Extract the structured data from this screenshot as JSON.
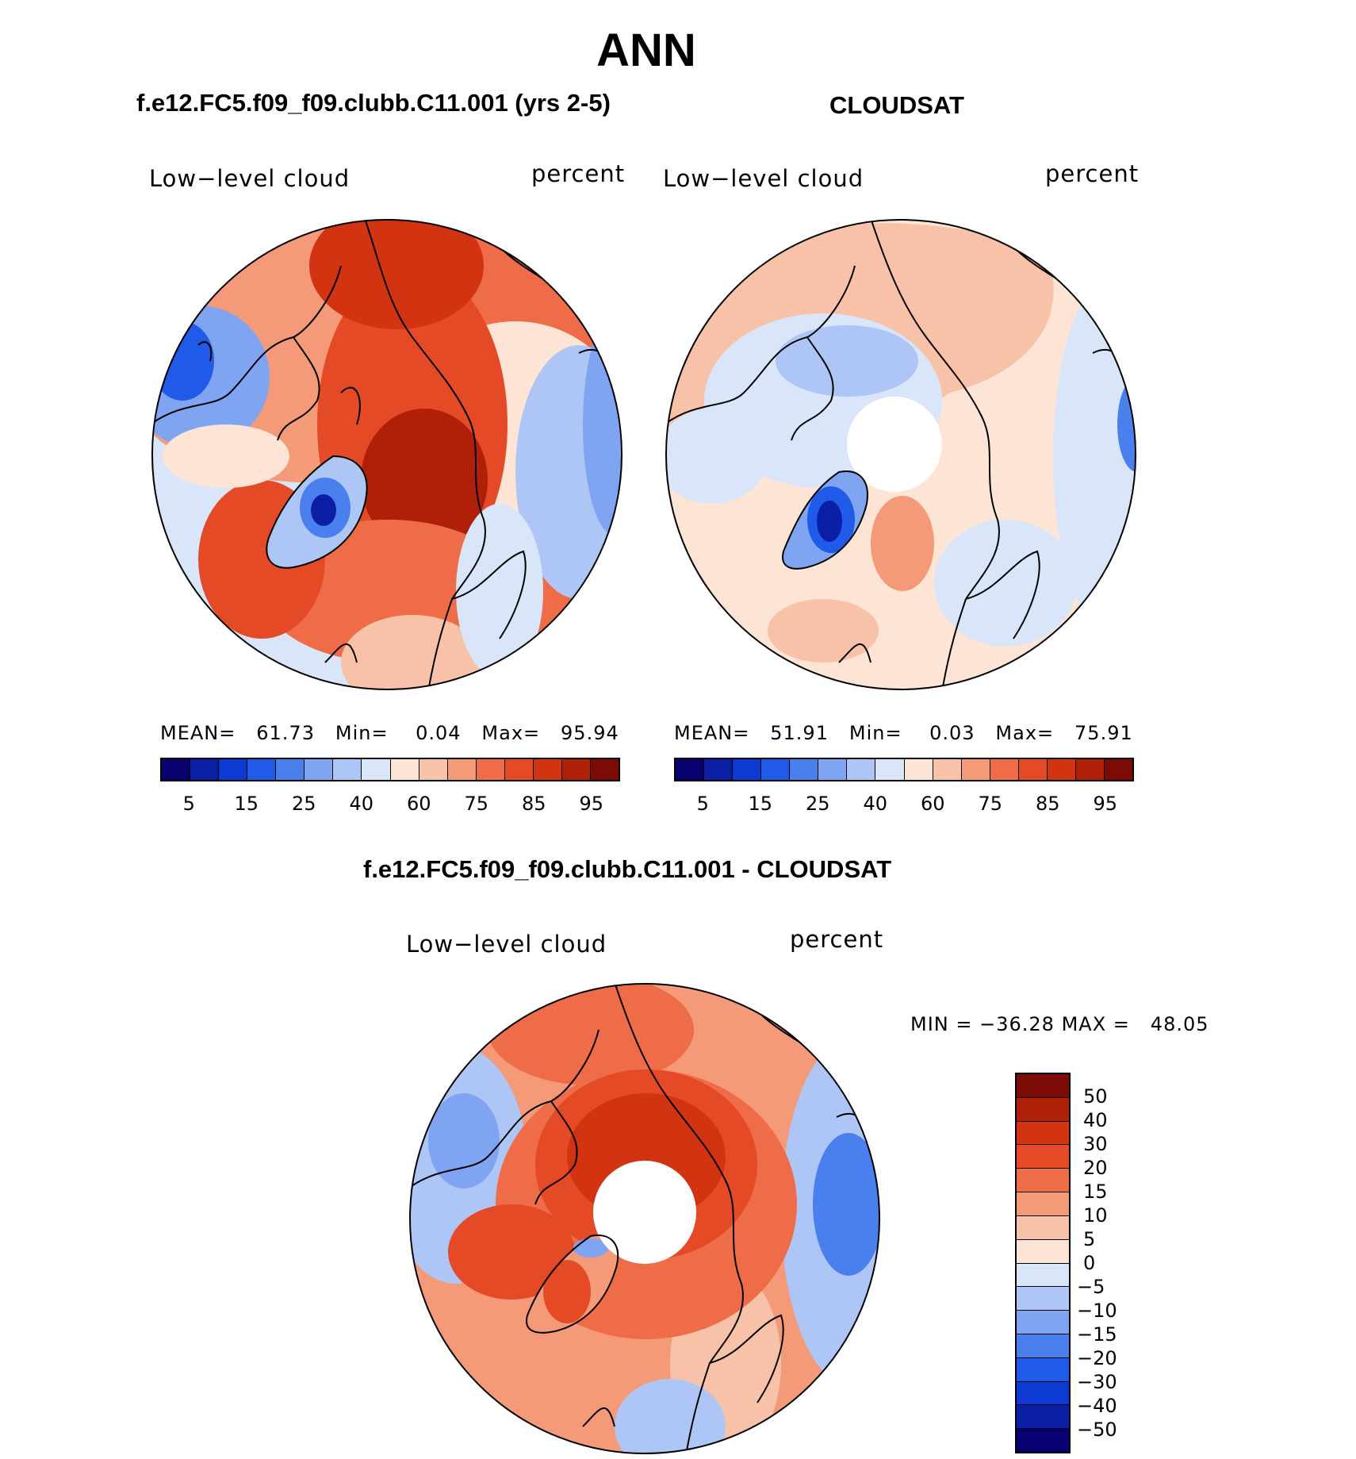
{
  "main_title": "ANN",
  "palette_abs": [
    "#08006e",
    "#0a1fa6",
    "#0d3ad2",
    "#1f5be8",
    "#4a80ee",
    "#7fa5f2",
    "#adc6f6",
    "#d9e6fa",
    "#fde4d4",
    "#f8c2a8",
    "#f49a78",
    "#ef6c48",
    "#e44a26",
    "#d23310",
    "#b01f08",
    "#7c0a05"
  ],
  "palette_diff": [
    "#7c0a05",
    "#b01f08",
    "#d23310",
    "#e44a26",
    "#ef6c48",
    "#f49a78",
    "#f8c2a8",
    "#fde4d4",
    "#d9e6fa",
    "#adc6f6",
    "#7fa5f2",
    "#4a80ee",
    "#1f5be8",
    "#0d3ad2",
    "#0a1fa6",
    "#08006e"
  ],
  "panels": {
    "model": {
      "title": "f.e12.FC5.f09_f09.clubb.C11.001 (yrs 2-5)",
      "variable": "Low−level cloud",
      "units": "percent",
      "stats": {
        "mean_label": "MEAN=",
        "mean": "61.73",
        "min_label": "Min=",
        "min": "0.04",
        "max_label": "Max=",
        "max": "95.94"
      },
      "ticks": [
        "5",
        "15",
        "25",
        "40",
        "60",
        "75",
        "85",
        "95"
      ]
    },
    "obs": {
      "title": "CLOUDSAT",
      "variable": "Low−level cloud",
      "units": "percent",
      "stats": {
        "mean_label": "MEAN=",
        "mean": "51.91",
        "min_label": "Min=",
        "min": "0.03",
        "max_label": "Max=",
        "max": "75.91"
      },
      "ticks": [
        "5",
        "15",
        "25",
        "40",
        "60",
        "75",
        "85",
        "95"
      ]
    },
    "diff": {
      "title": "f.e12.FC5.f09_f09.clubb.C11.001 - CLOUDSAT",
      "variable": "Low−level cloud",
      "units": "percent",
      "stats": {
        "min_label": "MIN =",
        "min": "−36.28",
        "max_label": "MAX =",
        "max": "48.05"
      },
      "ticks": [
        "50",
        "40",
        "30",
        "20",
        "15",
        "10",
        "5",
        "0",
        "−5",
        "−10",
        "−15",
        "−20",
        "−30",
        "−40",
        "−50"
      ]
    }
  }
}
